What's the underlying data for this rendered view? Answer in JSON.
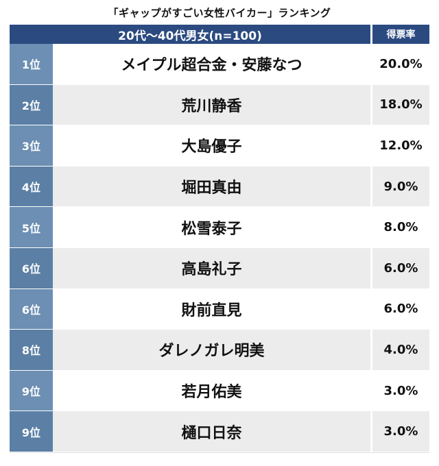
{
  "title": "「ギャップがすごい女性バイカー」ランキング",
  "chart_data": {
    "type": "table",
    "header": {
      "name_column": "20代〜40代男女(n=100)",
      "rate_column": "得票率"
    },
    "rows": [
      {
        "rank": "1位",
        "name": "メイプル超合金・安藤なつ",
        "rate": "20.0%",
        "value": 20.0
      },
      {
        "rank": "2位",
        "name": "荒川静香",
        "rate": "18.0%",
        "value": 18.0
      },
      {
        "rank": "3位",
        "name": "大島優子",
        "rate": "12.0%",
        "value": 12.0
      },
      {
        "rank": "4位",
        "name": "堀田真由",
        "rate": "9.0%",
        "value": 9.0
      },
      {
        "rank": "5位",
        "name": "松雪泰子",
        "rate": "8.0%",
        "value": 8.0
      },
      {
        "rank": "6位",
        "name": "高島礼子",
        "rate": "6.0%",
        "value": 6.0
      },
      {
        "rank": "6位",
        "name": "財前直見",
        "rate": "6.0%",
        "value": 6.0
      },
      {
        "rank": "8位",
        "name": "ダレノガレ明美",
        "rate": "4.0%",
        "value": 4.0
      },
      {
        "rank": "9位",
        "name": "若月佑美",
        "rate": "3.0%",
        "value": 3.0
      },
      {
        "rank": "9位",
        "name": "樋口日奈",
        "rate": "3.0%",
        "value": 3.0
      }
    ]
  },
  "colors": {
    "header_bg": "#2b4a80",
    "rank_bg": "#6c8fb3",
    "row_alt_bg": "#ececec"
  }
}
